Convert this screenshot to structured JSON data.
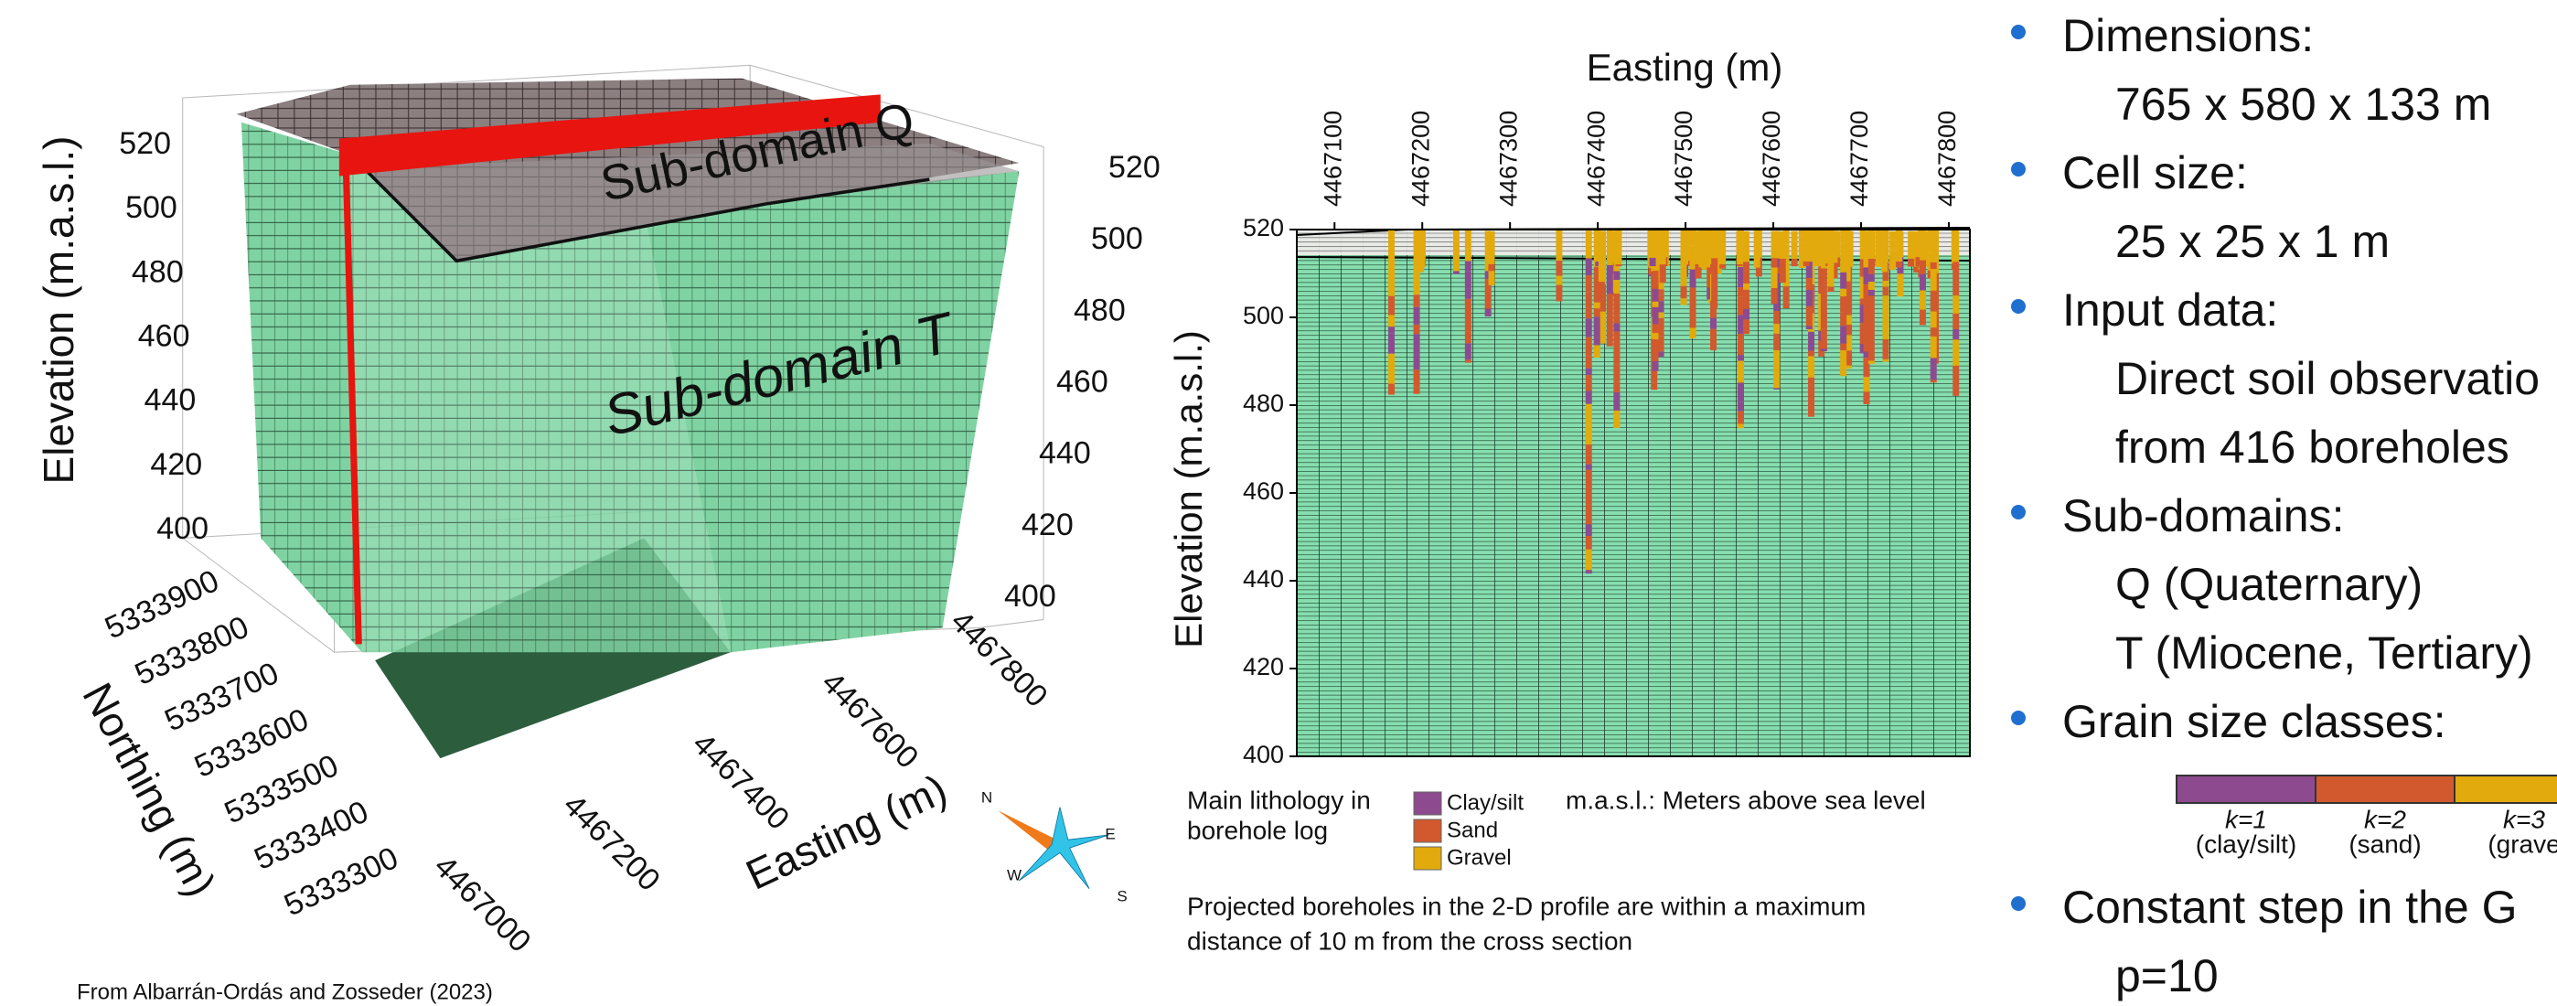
{
  "figure_3d": {
    "elevation_axis_label": "Elevation (m.a.s.l.)",
    "elevation_ticks": [
      400,
      420,
      440,
      460,
      480,
      500,
      520
    ],
    "northing_axis_label": "Northing (m)",
    "northing_ticks": [
      5333300,
      5333400,
      5333500,
      5333600,
      5333700,
      5333800,
      5333900
    ],
    "easting_axis_label": "Easting (m)",
    "easting_ticks": [
      4467000,
      4467200,
      4467400,
      4467600,
      4467800
    ],
    "subdomain_q": "Sub-domain Q",
    "subdomain_t": "Sub-domain T",
    "compass": [
      "N",
      "E",
      "W",
      "S"
    ],
    "credit": "From Albarrán-Ordás and Zosseder (2023)"
  },
  "chart_data": {
    "type": "cross-section",
    "x_label": "Easting (m)",
    "y_label": "Elevation (m.a.s.l.)",
    "xlim": [
      4467057,
      4467824
    ],
    "xticks": [
      4467100,
      4467200,
      4467300,
      4467400,
      4467500,
      4467600,
      4467700,
      4467800
    ],
    "ylim": [
      400,
      520
    ],
    "yticks": [
      400,
      420,
      440,
      460,
      480,
      500,
      520
    ],
    "legend_title": [
      "Main lithology in",
      "borehole log"
    ],
    "series": [
      {
        "name": "Clay/silt",
        "color": "#8e4a8f"
      },
      {
        "name": "Sand",
        "color": "#d2592e"
      },
      {
        "name": "Gravel",
        "color": "#e2aa0c"
      }
    ],
    "unit_note": "m.a.s.l.: Meters above sea level",
    "note": [
      "Projected boreholes in the 2-D profile are within a maximum",
      "distance of 10 m from the cross section"
    ]
  },
  "bullets": [
    {
      "heading": "Dimensions:",
      "lines": [
        "765 x 580 x 133 m"
      ]
    },
    {
      "heading": "Cell size:",
      "lines": [
        "25 x 25 x 1 m"
      ]
    },
    {
      "heading": "Input data:",
      "lines": [
        "Direct soil observatio",
        "from 416 boreholes"
      ]
    },
    {
      "heading": "Sub-domains:",
      "lines": [
        "Q (Quaternary)",
        "T (Miocene, Tertiary)"
      ]
    },
    {
      "heading": "Grain size classes:",
      "classes": [
        {
          "k": "k=1",
          "name": "(clay/silt)"
        },
        {
          "k": "k=2",
          "name": "(sand)"
        },
        {
          "k": "k=3",
          "name": "(grave"
        }
      ]
    },
    {
      "heading": "Constant step in the G",
      "lines": [
        "p=10"
      ]
    }
  ]
}
